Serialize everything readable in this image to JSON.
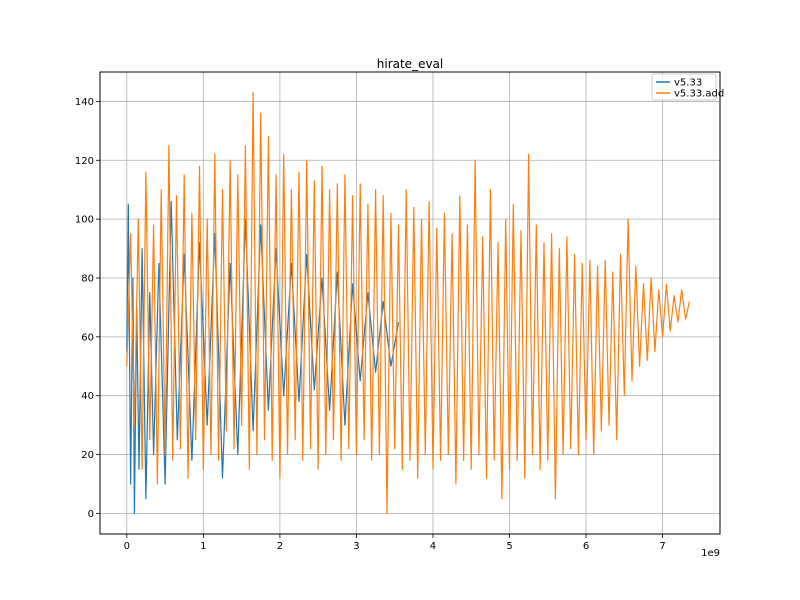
{
  "chart_data": {
    "type": "line",
    "title": "hirate_eval",
    "xlabel": "",
    "ylabel": "",
    "x_offset_label": "1e9",
    "xlim": [
      -0.35,
      7.75
    ],
    "ylim": [
      -7,
      150
    ],
    "xticks": [
      0,
      1,
      2,
      3,
      4,
      5,
      6,
      7
    ],
    "yticks": [
      0,
      20,
      40,
      60,
      80,
      100,
      120,
      140
    ],
    "grid": true,
    "legend_position": "top-right",
    "series": [
      {
        "name": "v5.33",
        "color": "#1f77b4",
        "x": [
          0.0,
          0.02,
          0.05,
          0.08,
          0.1,
          0.13,
          0.16,
          0.2,
          0.25,
          0.3,
          0.35,
          0.42,
          0.5,
          0.58,
          0.66,
          0.75,
          0.85,
          0.95,
          1.05,
          1.15,
          1.25,
          1.35,
          1.45,
          1.55,
          1.65,
          1.75,
          1.85,
          1.95,
          2.05,
          2.15,
          2.25,
          2.35,
          2.45,
          2.55,
          2.65,
          2.75,
          2.85,
          2.95,
          3.05,
          3.15,
          3.25,
          3.35,
          3.45,
          3.55
        ],
        "y": [
          55,
          105,
          10,
          80,
          0,
          70,
          15,
          90,
          5,
          75,
          20,
          85,
          10,
          106,
          25,
          88,
          18,
          92,
          30,
          95,
          12,
          85,
          20,
          100,
          28,
          98,
          35,
          90,
          40,
          85,
          38,
          88,
          42,
          80,
          35,
          82,
          30,
          78,
          45,
          75,
          48,
          72,
          50,
          65
        ]
      },
      {
        "name": "v5.33.add",
        "color": "#ff7f0e",
        "x": [
          0.0,
          0.05,
          0.1,
          0.15,
          0.2,
          0.25,
          0.3,
          0.35,
          0.4,
          0.45,
          0.5,
          0.55,
          0.6,
          0.65,
          0.7,
          0.75,
          0.8,
          0.85,
          0.9,
          0.95,
          1.0,
          1.05,
          1.1,
          1.15,
          1.2,
          1.25,
          1.3,
          1.35,
          1.4,
          1.45,
          1.5,
          1.55,
          1.6,
          1.65,
          1.7,
          1.75,
          1.8,
          1.85,
          1.9,
          1.95,
          2.0,
          2.05,
          2.1,
          2.15,
          2.2,
          2.25,
          2.3,
          2.35,
          2.4,
          2.45,
          2.5,
          2.55,
          2.6,
          2.65,
          2.7,
          2.75,
          2.8,
          2.85,
          2.9,
          2.95,
          3.0,
          3.05,
          3.1,
          3.15,
          3.2,
          3.25,
          3.3,
          3.35,
          3.4,
          3.45,
          3.5,
          3.55,
          3.6,
          3.65,
          3.7,
          3.75,
          3.8,
          3.85,
          3.9,
          3.95,
          4.0,
          4.05,
          4.1,
          4.15,
          4.2,
          4.25,
          4.3,
          4.35,
          4.4,
          4.45,
          4.5,
          4.55,
          4.6,
          4.65,
          4.7,
          4.75,
          4.8,
          4.85,
          4.9,
          4.95,
          5.0,
          5.05,
          5.1,
          5.15,
          5.2,
          5.25,
          5.3,
          5.35,
          5.4,
          5.45,
          5.5,
          5.55,
          5.6,
          5.65,
          5.7,
          5.75,
          5.8,
          5.85,
          5.9,
          5.95,
          6.0,
          6.05,
          6.1,
          6.15,
          6.2,
          6.25,
          6.3,
          6.35,
          6.4,
          6.45,
          6.5,
          6.55,
          6.6,
          6.65,
          6.7,
          6.75,
          6.8,
          6.85,
          6.9,
          6.95,
          7.0,
          7.05,
          7.1,
          7.15,
          7.2,
          7.25,
          7.3,
          7.35
        ],
        "y": [
          50,
          95,
          30,
          100,
          15,
          116,
          25,
          98,
          10,
          110,
          20,
          125,
          18,
          108,
          22,
          115,
          12,
          102,
          25,
          118,
          15,
          100,
          20,
          122,
          18,
          110,
          28,
          120,
          22,
          115,
          30,
          125,
          15,
          143,
          20,
          136,
          25,
          128,
          18,
          115,
          12,
          122,
          20,
          110,
          25,
          116,
          18,
          120,
          22,
          113,
          15,
          118,
          20,
          110,
          25,
          112,
          18,
          115,
          22,
          108,
          20,
          112,
          25,
          105,
          18,
          110,
          20,
          108,
          0,
          102,
          22,
          98,
          15,
          110,
          18,
          104,
          12,
          100,
          20,
          106,
          15,
          97,
          18,
          102,
          20,
          95,
          10,
          108,
          18,
          98,
          15,
          120,
          20,
          94,
          12,
          110,
          18,
          92,
          5,
          100,
          15,
          105,
          18,
          96,
          12,
          122,
          20,
          98,
          15,
          92,
          18,
          95,
          5,
          90,
          20,
          94,
          22,
          88,
          20,
          85,
          25,
          86,
          20,
          84,
          28,
          86,
          30,
          82,
          25,
          88,
          40,
          100,
          45,
          84,
          50,
          78,
          52,
          80,
          55,
          76,
          60,
          78,
          62,
          74,
          65,
          76,
          66,
          72
        ]
      }
    ]
  }
}
